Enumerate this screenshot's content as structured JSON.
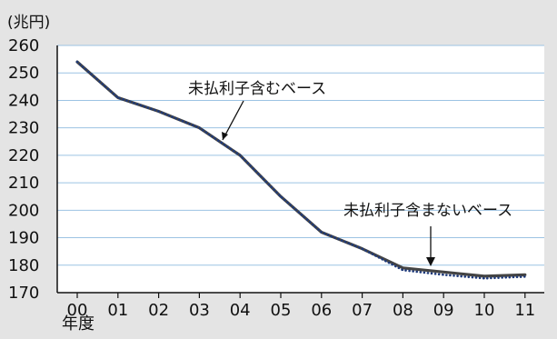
{
  "chart_data": {
    "type": "line",
    "title": "",
    "unit_label": "(兆円)",
    "xlabel": "年度",
    "ylabel": "",
    "categories": [
      "00",
      "01",
      "02",
      "03",
      "04",
      "05",
      "06",
      "07",
      "08",
      "09",
      "10",
      "11"
    ],
    "ylim": [
      170,
      260
    ],
    "yticks": [
      170,
      180,
      190,
      200,
      210,
      220,
      230,
      240,
      250,
      260
    ],
    "grid": true,
    "series": [
      {
        "name": "未払利子含むベース",
        "values": [
          254,
          241,
          236,
          230,
          220,
          205,
          192,
          186,
          179,
          177.5,
          176,
          176.5
        ],
        "color": "#444444",
        "style": "solid"
      },
      {
        "name": "未払利子含まないベース",
        "values": [
          254,
          241,
          236,
          230,
          220,
          205,
          192,
          186,
          178.2,
          176.5,
          175.2,
          175.8
        ],
        "color": "#1f3a7a",
        "style": "dotted"
      }
    ],
    "annotations": [
      {
        "text": "未払利子含むベース",
        "series": 0
      },
      {
        "text": "未払利子含まないベース",
        "series": 1
      }
    ],
    "colors": {
      "background": "#e4e4e4",
      "plot_background": "#ffffff",
      "grid": "#9cc3e3",
      "axis": "#111111"
    }
  }
}
